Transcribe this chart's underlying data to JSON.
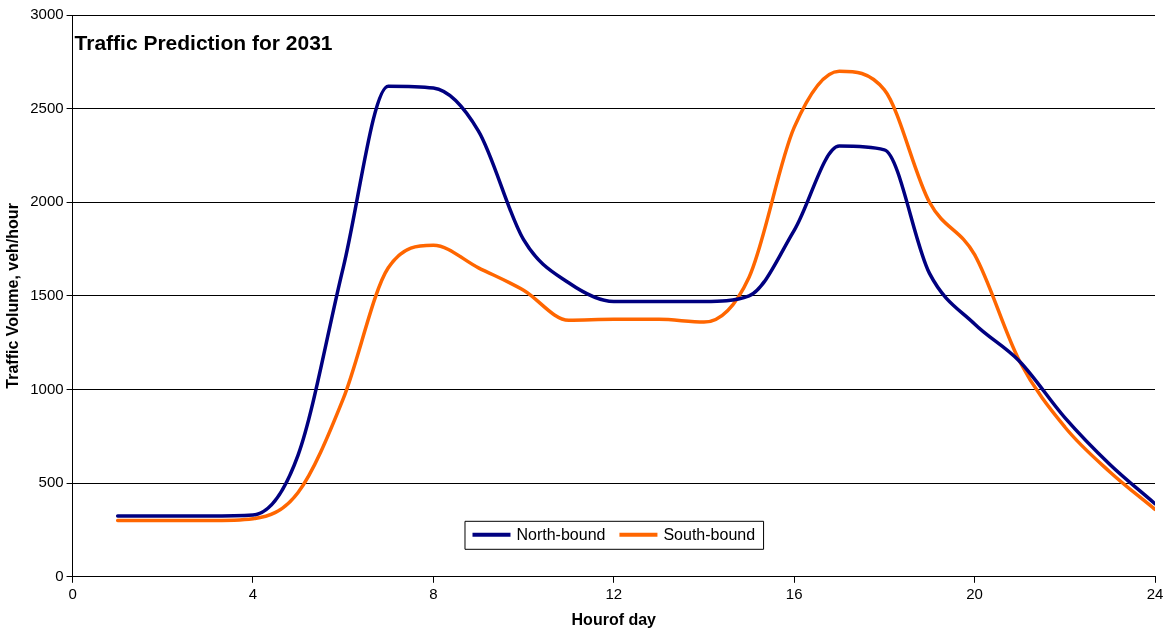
{
  "chart_data": {
    "type": "line",
    "title": "Traffic Prediction for 2031",
    "xlabel": "Hourof day",
    "ylabel": "Traffic Volume, veh/hour",
    "x": [
      1,
      2,
      3,
      4,
      5,
      6,
      7,
      8,
      9,
      10,
      11,
      12,
      13,
      14,
      15,
      16,
      17,
      18,
      19,
      20,
      21,
      22,
      23,
      24
    ],
    "series": [
      {
        "name": "North-bound",
        "color": "#000080",
        "values": [
          325,
          325,
          325,
          330,
          650,
          1650,
          2620,
          2610,
          2380,
          1800,
          1570,
          1470,
          1470,
          1470,
          1500,
          1850,
          2300,
          2280,
          1620,
          1350,
          1150,
          850,
          600,
          390
        ]
      },
      {
        "name": "South-bound",
        "color": "#ff6600",
        "values": [
          300,
          300,
          300,
          310,
          450,
          950,
          1650,
          1770,
          1650,
          1530,
          1370,
          1375,
          1375,
          1360,
          1600,
          2400,
          2700,
          2600,
          2000,
          1720,
          1150,
          800,
          560,
          360
        ]
      }
    ],
    "xlim": [
      0,
      24
    ],
    "xticks": [
      0,
      4,
      8,
      12,
      16,
      20,
      24
    ],
    "ylim": [
      0,
      3000
    ],
    "yticks": [
      0,
      500,
      1000,
      1500,
      2000,
      2500,
      3000
    ],
    "grid": "y",
    "legend": "bottom",
    "marker": "none",
    "line_style": "solid"
  }
}
